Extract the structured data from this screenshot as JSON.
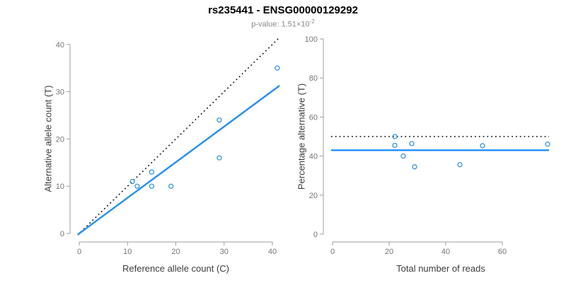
{
  "header": {
    "title": "rs235441 - ENSG00000129292",
    "subtitle_prefix": "p-value: ",
    "pvalue_mantissa": "1.51",
    "pvalue_times_base": "×10",
    "pvalue_exponent": "-2"
  },
  "colors": {
    "accent_blue": "#1e8fff",
    "identity_black": "#0a0a0a",
    "axis_line": "#9e9e9e",
    "tick_label": "#757575",
    "axis_title": "#3d3d3d",
    "subtitle_gray": "#8a8a8a"
  },
  "chart_data": [
    {
      "type": "scatter",
      "panel": "left",
      "xlabel": "Reference allele count (C)",
      "ylabel": "Alternative allele count (T)",
      "xlim": [
        -0.3,
        41.5
      ],
      "ylim": [
        0,
        41.5
      ],
      "xticks": [
        0,
        10,
        20,
        30,
        40
      ],
      "yticks": [
        0,
        10,
        20,
        30,
        40
      ],
      "grid": false,
      "legend": "none",
      "points": [
        [
          11,
          11
        ],
        [
          12,
          10
        ],
        [
          15,
          10
        ],
        [
          15,
          13
        ],
        [
          19,
          10
        ],
        [
          29,
          16
        ],
        [
          29,
          24
        ],
        [
          41,
          35
        ]
      ],
      "lines": [
        {
          "name": "identity-line",
          "kind": "abline",
          "slope": 1,
          "intercept": 0,
          "style": "dotted",
          "color_key": "identity_black"
        },
        {
          "name": "fit-line",
          "kind": "abline",
          "slope": 0.754,
          "intercept": 0,
          "style": "solid",
          "color_key": "accent_blue"
        }
      ]
    },
    {
      "type": "scatter",
      "panel": "right",
      "xlabel": "Total number of reads",
      "ylabel": "Percentage alternative (T)",
      "xlim": [
        -0.5,
        76.5
      ],
      "ylim": [
        0,
        100
      ],
      "xticks": [
        0,
        20,
        40,
        60
      ],
      "yticks": [
        0,
        20,
        40,
        60,
        80,
        100
      ],
      "grid": false,
      "legend": "none",
      "points": [
        [
          22,
          50
        ],
        [
          22,
          45.5
        ],
        [
          25,
          40
        ],
        [
          28,
          46.4
        ],
        [
          29,
          34.5
        ],
        [
          45,
          35.6
        ],
        [
          53,
          45.3
        ],
        [
          76,
          46.1
        ]
      ],
      "lines": [
        {
          "name": "null-50pct-line",
          "kind": "hline",
          "y": 50,
          "style": "dotted",
          "color_key": "identity_black"
        },
        {
          "name": "observed-43pct-line",
          "kind": "hline",
          "y": 43,
          "style": "solid",
          "color_key": "accent_blue"
        }
      ]
    }
  ]
}
